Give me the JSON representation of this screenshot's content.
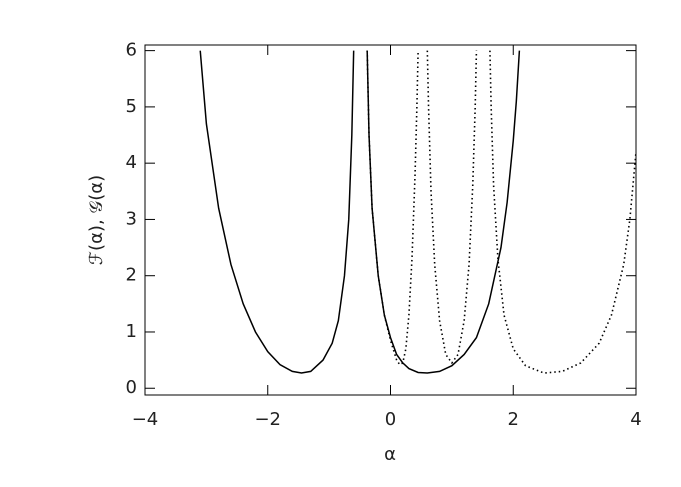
{
  "chart_data": {
    "type": "line",
    "xlabel": "α",
    "ylabel": "ℱ(α), 𝒢(α)",
    "xlim": [
      -4,
      4
    ],
    "ylim": [
      -0.12,
      6.1
    ],
    "xticks": [
      {
        "value": -4,
        "label": "−4"
      },
      {
        "value": -2,
        "label": "−2"
      },
      0,
      2,
      4
    ],
    "yticks": [
      0,
      1,
      2,
      3,
      4,
      5,
      6
    ],
    "series": [
      {
        "color": "#000000",
        "dash": "solid",
        "x": [
          -3.1,
          -3.0,
          -2.8,
          -2.6,
          -2.4,
          -2.2,
          -2.0,
          -1.8,
          -1.6,
          -1.45,
          -1.3,
          -1.1,
          -0.95,
          -0.85,
          -0.75,
          -0.68,
          -0.63,
          -0.6,
          null,
          -0.38,
          -0.35,
          -0.3,
          -0.2,
          -0.1,
          0,
          0.1,
          0.2,
          0.3,
          0.45,
          0.6,
          0.8,
          1.0,
          1.2,
          1.4,
          1.6,
          1.8,
          1.9,
          2.0,
          2.05,
          2.1
        ],
        "values": [
          6.0,
          4.7,
          3.2,
          2.2,
          1.5,
          1.0,
          0.65,
          0.42,
          0.3,
          0.27,
          0.3,
          0.5,
          0.8,
          1.2,
          2.0,
          3.0,
          4.5,
          6.0,
          null,
          6.0,
          4.5,
          3.2,
          2.0,
          1.3,
          0.9,
          0.6,
          0.45,
          0.35,
          0.28,
          0.27,
          0.3,
          0.4,
          0.6,
          0.9,
          1.5,
          2.5,
          3.3,
          4.4,
          5.1,
          6.0
        ]
      },
      {
        "color": "#000000",
        "dash": "dotted",
        "x": [
          -0.38,
          -0.35,
          -0.3,
          -0.2,
          -0.1,
          0,
          0.1,
          0.15,
          0.2,
          0.25,
          0.3,
          0.35,
          0.4,
          0.43,
          0.45,
          null,
          0.6,
          0.62,
          0.66,
          0.72,
          0.8,
          0.9,
          1.0,
          1.1,
          1.2,
          1.28,
          1.34,
          1.38,
          1.4,
          null,
          1.62,
          1.64,
          1.68,
          1.75,
          1.85,
          2.0,
          2.2,
          2.5,
          2.8,
          3.1,
          3.4,
          3.6,
          3.8,
          3.9,
          4.0
        ],
        "values": [
          6.0,
          4.5,
          3.2,
          2.0,
          1.3,
          0.85,
          0.5,
          0.42,
          0.45,
          0.7,
          1.3,
          2.3,
          3.8,
          5.0,
          6.0,
          null,
          6.0,
          5.0,
          3.5,
          2.2,
          1.2,
          0.6,
          0.45,
          0.6,
          1.2,
          2.2,
          3.6,
          5.0,
          6.0,
          null,
          6.0,
          5.0,
          3.6,
          2.3,
          1.3,
          0.7,
          0.4,
          0.27,
          0.3,
          0.45,
          0.8,
          1.3,
          2.2,
          3.0,
          4.2
        ]
      }
    ]
  }
}
